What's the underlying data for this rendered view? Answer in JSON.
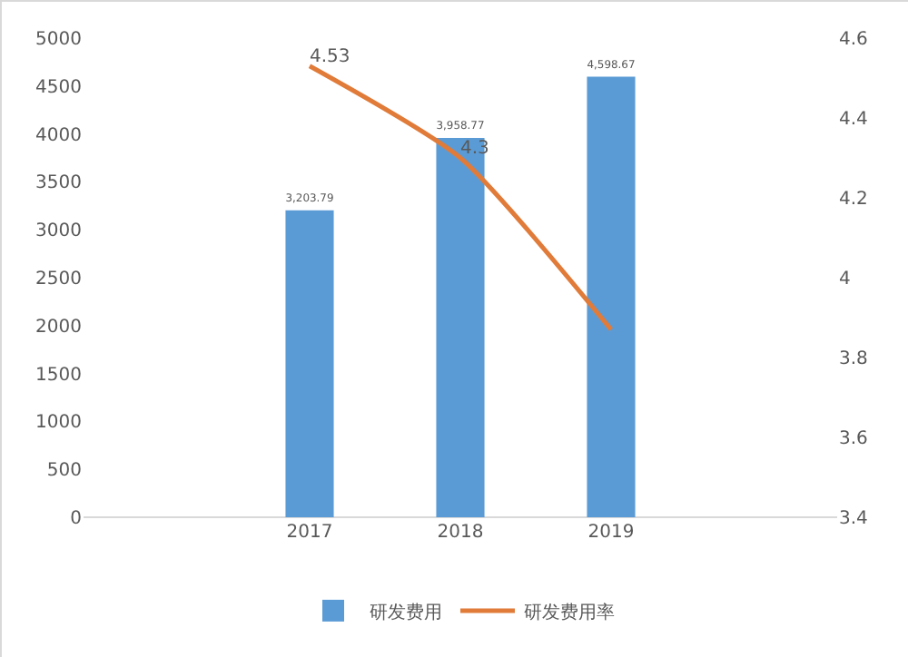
{
  "chart_data": {
    "type": "bar",
    "categories": [
      "2017",
      "2018",
      "2019"
    ],
    "series": [
      {
        "name": "研发费用",
        "color": "#5b9bd5",
        "values": [
          3203.79,
          3958.77,
          4598.67
        ],
        "value_labels": [
          "3,203.79",
          "3,958.77",
          "4,598.67"
        ]
      },
      {
        "name": "研发费用率",
        "type": "line",
        "axis": "y2",
        "color": "#e07b39",
        "values": [
          4.53,
          4.3,
          3.87
        ],
        "value_labels": [
          "4.53",
          "4.3",
          null
        ],
        "marker": "none",
        "line_style": "solid"
      }
    ],
    "ylim": [
      0,
      5000
    ],
    "yticks": [
      0,
      500,
      1000,
      1500,
      2000,
      2500,
      3000,
      3500,
      4000,
      4500,
      5000
    ],
    "y2lim": [
      3.4,
      4.6
    ],
    "y2ticks": [
      {
        "value": 3.4,
        "label": "3.4"
      },
      {
        "value": 3.6,
        "label": "3.6"
      },
      {
        "value": 3.8,
        "label": "3.8"
      },
      {
        "value": 4,
        "label": "4"
      },
      {
        "value": 4.2,
        "label": "4.2"
      },
      {
        "value": 4.4,
        "label": "4.4"
      },
      {
        "value": 4.6,
        "label": "4.6"
      }
    ],
    "grid": false,
    "legend": "bottom"
  }
}
